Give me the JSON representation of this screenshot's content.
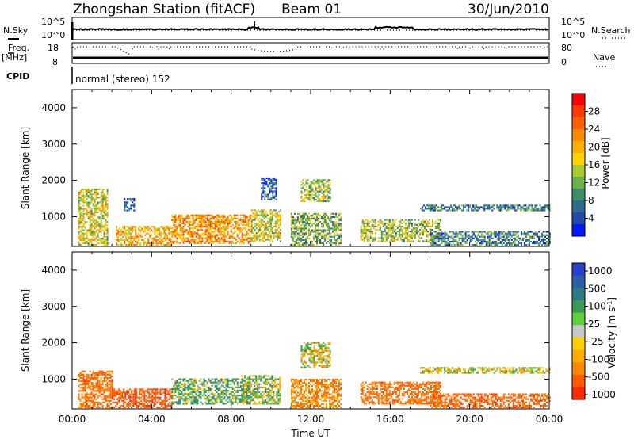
{
  "header": {
    "station_title": "Zhongshan Station (fitACF)",
    "beam": "Beam 01",
    "date": "30/Jun/2010"
  },
  "mini_panels": {
    "nsky_label": "N.Sky",
    "nsearch_label": "N.Search",
    "freq_label_line1": "Freq.",
    "freq_label_line2": "[MHz]",
    "nave_label": "Nave",
    "cpid_label": "CPID",
    "cpid_text": "normal (stereo) 152",
    "noise_ticks_left": [
      "10^5",
      "10^0"
    ],
    "noise_ticks_right": [
      "10^5",
      "10^0"
    ],
    "freq_ticks": [
      "18",
      "8"
    ],
    "nave_ticks": [
      "80",
      "0"
    ]
  },
  "chart_data": [
    {
      "type": "heatmap",
      "name": "power",
      "ylabel": "Slant Range [km]",
      "xlabel": "",
      "ylim": [
        180,
        4500
      ],
      "xlim": [
        0,
        24
      ],
      "yticks": [
        1000,
        2000,
        3000,
        4000
      ],
      "colorbar": {
        "label": "Power [dB]",
        "range": [
          0,
          32
        ],
        "ticks": [
          4,
          8,
          12,
          16,
          20,
          24,
          28
        ],
        "colors": [
          "#0018ff",
          "#2448a8",
          "#2f6a90",
          "#3e8e6a",
          "#6bb24a",
          "#a8cc2c",
          "#ffd200",
          "#ffb000",
          "#ff8a00",
          "#ff6000",
          "#ff3a00",
          "#ff0000"
        ]
      },
      "regions": [
        {
          "t0": 0.3,
          "t1": 1.8,
          "r0": 200,
          "r1": 1750,
          "v": 16
        },
        {
          "t0": 2.6,
          "t1": 3.1,
          "r0": 1150,
          "r1": 1500,
          "v": 6
        },
        {
          "t0": 2.2,
          "t1": 5.0,
          "r0": 200,
          "r1": 700,
          "v": 20
        },
        {
          "t0": 5.0,
          "t1": 9.0,
          "r0": 250,
          "r1": 1050,
          "v": 22
        },
        {
          "t0": 9.0,
          "t1": 10.5,
          "r0": 300,
          "r1": 1200,
          "v": 16
        },
        {
          "t0": 9.5,
          "t1": 10.3,
          "r0": 1450,
          "r1": 2050,
          "v": 6
        },
        {
          "t0": 11.5,
          "t1": 13.0,
          "r0": 1400,
          "r1": 2000,
          "v": 14
        },
        {
          "t0": 11.0,
          "t1": 13.5,
          "r0": 200,
          "r1": 1100,
          "v": 12
        },
        {
          "t0": 14.5,
          "t1": 18.5,
          "r0": 300,
          "r1": 900,
          "v": 14
        },
        {
          "t0": 17.5,
          "t1": 24.0,
          "r0": 1150,
          "r1": 1300,
          "v": 8
        },
        {
          "t0": 18.0,
          "t1": 24.0,
          "r0": 200,
          "r1": 600,
          "v": 8
        }
      ]
    },
    {
      "type": "heatmap",
      "name": "velocity",
      "ylabel": "Slant Range [km]",
      "xlabel": "Time UT",
      "ylim": [
        180,
        4500
      ],
      "xlim": [
        0,
        24
      ],
      "yticks": [
        1000,
        2000,
        3000,
        4000
      ],
      "xticks": [
        "00:00",
        "04:00",
        "08:00",
        "12:00",
        "16:00",
        "20:00",
        "00:00"
      ],
      "colorbar": {
        "label": "Velocity [m s-1]",
        "ticks": [
          "1000",
          "500",
          "100",
          "25",
          "-25",
          "-100",
          "-500",
          "-1000"
        ],
        "colors": [
          "#2a3fd0",
          "#2a5fa8",
          "#2d7a82",
          "#3c9a56",
          "#5ed03a",
          "#c8c8c8",
          "#ffd000",
          "#ffae00",
          "#ff8a00",
          "#ff5c00",
          "#ff2a00"
        ]
      },
      "regions": [
        {
          "t0": 0.3,
          "t1": 2.0,
          "r0": 200,
          "r1": 1200,
          "v": -300
        },
        {
          "t0": 2.0,
          "t1": 5.0,
          "r0": 200,
          "r1": 700,
          "v": -400
        },
        {
          "t0": 5.0,
          "t1": 9.0,
          "r0": 300,
          "r1": 1000,
          "v": 150
        },
        {
          "t0": 8.5,
          "t1": 10.5,
          "r0": 300,
          "r1": 1100,
          "v": 80
        },
        {
          "t0": 11.5,
          "t1": 13.0,
          "r0": 1300,
          "r1": 2000,
          "v": 0
        },
        {
          "t0": 11.0,
          "t1": 13.5,
          "r0": 200,
          "r1": 1000,
          "v": -200
        },
        {
          "t0": 14.5,
          "t1": 18.5,
          "r0": 300,
          "r1": 900,
          "v": -300
        },
        {
          "t0": 17.5,
          "t1": 24.0,
          "r0": 1150,
          "r1": 1300,
          "v": 0
        },
        {
          "t0": 18.0,
          "t1": 24.0,
          "r0": 200,
          "r1": 600,
          "v": -350
        }
      ]
    }
  ]
}
